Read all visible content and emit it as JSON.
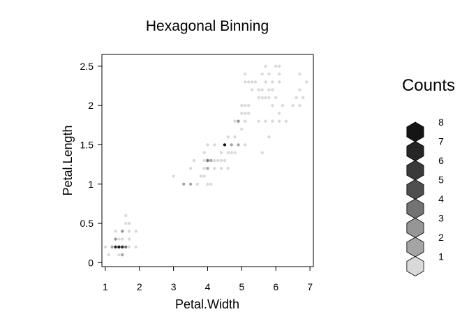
{
  "chart_data": {
    "type": "hexbin",
    "title": "Hexagonal Binning",
    "xlabel": "Petal.Width",
    "ylabel": "Petal.Length",
    "xlim": [
      0.9,
      7.1
    ],
    "ylim": [
      -0.05,
      2.65
    ],
    "xticks": [
      1,
      2,
      3,
      4,
      5,
      6,
      7
    ],
    "yticks": [
      0,
      0.5,
      1,
      1.5,
      2,
      2.5
    ],
    "ytick_labels": [
      "0",
      "0.5",
      "1",
      "1.5",
      "2",
      "2.5"
    ],
    "grid": false,
    "legend": {
      "title": "Counts",
      "position": "right",
      "levels": [
        {
          "count": 1,
          "color": "#d9d9d9"
        },
        {
          "count": 2,
          "color": "#a5a5a5"
        },
        {
          "count": 3,
          "color": "#969696"
        },
        {
          "count": 4,
          "color": "#737373"
        },
        {
          "count": 5,
          "color": "#4f4f4f"
        },
        {
          "count": 6,
          "color": "#3a3a3a"
        },
        {
          "count": 7,
          "color": "#262626"
        },
        {
          "count": 8,
          "color": "#151515"
        }
      ]
    },
    "bins": [
      {
        "x": 1.1,
        "y": 0.1,
        "count": 1
      },
      {
        "x": 1.4,
        "y": 0.1,
        "count": 1
      },
      {
        "x": 1.5,
        "y": 0.1,
        "count": 2
      },
      {
        "x": 1.0,
        "y": 0.2,
        "count": 1
      },
      {
        "x": 1.2,
        "y": 0.2,
        "count": 2
      },
      {
        "x": 1.3,
        "y": 0.2,
        "count": 7
      },
      {
        "x": 1.4,
        "y": 0.2,
        "count": 8
      },
      {
        "x": 1.5,
        "y": 0.2,
        "count": 7
      },
      {
        "x": 1.6,
        "y": 0.2,
        "count": 4
      },
      {
        "x": 1.7,
        "y": 0.2,
        "count": 1
      },
      {
        "x": 1.9,
        "y": 0.2,
        "count": 1
      },
      {
        "x": 1.3,
        "y": 0.3,
        "count": 3
      },
      {
        "x": 1.4,
        "y": 0.3,
        "count": 1
      },
      {
        "x": 1.5,
        "y": 0.3,
        "count": 1
      },
      {
        "x": 1.7,
        "y": 0.3,
        "count": 1
      },
      {
        "x": 1.3,
        "y": 0.4,
        "count": 1
      },
      {
        "x": 1.5,
        "y": 0.4,
        "count": 3
      },
      {
        "x": 1.7,
        "y": 0.4,
        "count": 1
      },
      {
        "x": 1.9,
        "y": 0.4,
        "count": 1
      },
      {
        "x": 1.6,
        "y": 0.5,
        "count": 1
      },
      {
        "x": 1.7,
        "y": 0.5,
        "count": 1
      },
      {
        "x": 1.6,
        "y": 0.6,
        "count": 1
      },
      {
        "x": 3.0,
        "y": 1.1,
        "count": 1
      },
      {
        "x": 3.3,
        "y": 1.0,
        "count": 2
      },
      {
        "x": 3.5,
        "y": 1.0,
        "count": 2
      },
      {
        "x": 3.7,
        "y": 1.0,
        "count": 1
      },
      {
        "x": 3.8,
        "y": 1.1,
        "count": 1
      },
      {
        "x": 3.9,
        "y": 1.1,
        "count": 1
      },
      {
        "x": 4.0,
        "y": 1.0,
        "count": 1
      },
      {
        "x": 4.1,
        "y": 1.0,
        "count": 1
      },
      {
        "x": 3.5,
        "y": 1.2,
        "count": 1
      },
      {
        "x": 3.9,
        "y": 1.2,
        "count": 1
      },
      {
        "x": 4.0,
        "y": 1.2,
        "count": 2
      },
      {
        "x": 4.2,
        "y": 1.2,
        "count": 1
      },
      {
        "x": 4.4,
        "y": 1.2,
        "count": 1
      },
      {
        "x": 4.6,
        "y": 1.2,
        "count": 1
      },
      {
        "x": 3.6,
        "y": 1.3,
        "count": 1
      },
      {
        "x": 3.9,
        "y": 1.3,
        "count": 1
      },
      {
        "x": 4.0,
        "y": 1.3,
        "count": 4
      },
      {
        "x": 4.1,
        "y": 1.3,
        "count": 2
      },
      {
        "x": 4.2,
        "y": 1.3,
        "count": 1
      },
      {
        "x": 4.3,
        "y": 1.3,
        "count": 1
      },
      {
        "x": 4.4,
        "y": 1.3,
        "count": 1
      },
      {
        "x": 4.5,
        "y": 1.3,
        "count": 1
      },
      {
        "x": 4.7,
        "y": 1.4,
        "count": 1
      },
      {
        "x": 3.9,
        "y": 1.4,
        "count": 1
      },
      {
        "x": 4.4,
        "y": 1.4,
        "count": 1
      },
      {
        "x": 4.6,
        "y": 1.4,
        "count": 1
      },
      {
        "x": 4.7,
        "y": 1.5,
        "count": 2
      },
      {
        "x": 4.5,
        "y": 1.5,
        "count": 8
      },
      {
        "x": 4.9,
        "y": 1.5,
        "count": 2
      },
      {
        "x": 5.1,
        "y": 1.5,
        "count": 1
      },
      {
        "x": 4.0,
        "y": 1.5,
        "count": 1
      },
      {
        "x": 4.2,
        "y": 1.5,
        "count": 1
      },
      {
        "x": 4.6,
        "y": 1.6,
        "count": 1
      },
      {
        "x": 4.8,
        "y": 1.6,
        "count": 1
      },
      {
        "x": 5.0,
        "y": 1.7,
        "count": 1
      },
      {
        "x": 5.8,
        "y": 1.6,
        "count": 1
      },
      {
        "x": 4.8,
        "y": 1.8,
        "count": 1
      },
      {
        "x": 4.9,
        "y": 1.8,
        "count": 3
      },
      {
        "x": 5.1,
        "y": 1.8,
        "count": 1
      },
      {
        "x": 5.5,
        "y": 1.8,
        "count": 1
      },
      {
        "x": 5.7,
        "y": 1.8,
        "count": 1
      },
      {
        "x": 5.9,
        "y": 1.8,
        "count": 1
      },
      {
        "x": 6.1,
        "y": 1.8,
        "count": 1
      },
      {
        "x": 6.3,
        "y": 1.8,
        "count": 1
      },
      {
        "x": 4.8,
        "y": 1.4,
        "count": 1
      },
      {
        "x": 5.0,
        "y": 1.9,
        "count": 1
      },
      {
        "x": 5.1,
        "y": 1.9,
        "count": 1
      },
      {
        "x": 5.2,
        "y": 1.9,
        "count": 1
      },
      {
        "x": 5.6,
        "y": 1.4,
        "count": 1
      },
      {
        "x": 5.0,
        "y": 2.0,
        "count": 1
      },
      {
        "x": 5.1,
        "y": 2.0,
        "count": 1
      },
      {
        "x": 5.2,
        "y": 2.0,
        "count": 1
      },
      {
        "x": 5.9,
        "y": 2.0,
        "count": 1
      },
      {
        "x": 6.2,
        "y": 2.0,
        "count": 1
      },
      {
        "x": 6.5,
        "y": 2.0,
        "count": 1
      },
      {
        "x": 6.7,
        "y": 2.0,
        "count": 1
      },
      {
        "x": 6.1,
        "y": 1.9,
        "count": 1
      },
      {
        "x": 5.5,
        "y": 2.1,
        "count": 1
      },
      {
        "x": 5.6,
        "y": 2.1,
        "count": 1
      },
      {
        "x": 5.7,
        "y": 2.1,
        "count": 1
      },
      {
        "x": 6.0,
        "y": 2.1,
        "count": 1
      },
      {
        "x": 6.6,
        "y": 2.1,
        "count": 1
      },
      {
        "x": 6.8,
        "y": 2.1,
        "count": 1
      },
      {
        "x": 5.3,
        "y": 2.2,
        "count": 1
      },
      {
        "x": 5.6,
        "y": 2.2,
        "count": 1
      },
      {
        "x": 5.9,
        "y": 2.2,
        "count": 1
      },
      {
        "x": 5.1,
        "y": 2.3,
        "count": 1
      },
      {
        "x": 5.2,
        "y": 2.3,
        "count": 1
      },
      {
        "x": 5.3,
        "y": 2.3,
        "count": 1
      },
      {
        "x": 5.4,
        "y": 2.3,
        "count": 1
      },
      {
        "x": 5.7,
        "y": 2.3,
        "count": 1
      },
      {
        "x": 5.9,
        "y": 2.3,
        "count": 1
      },
      {
        "x": 6.1,
        "y": 2.3,
        "count": 1
      },
      {
        "x": 6.9,
        "y": 2.3,
        "count": 1
      },
      {
        "x": 5.5,
        "y": 2.2,
        "count": 1
      },
      {
        "x": 6.7,
        "y": 2.2,
        "count": 1
      },
      {
        "x": 5.6,
        "y": 2.4,
        "count": 1
      },
      {
        "x": 5.8,
        "y": 2.4,
        "count": 1
      },
      {
        "x": 6.1,
        "y": 2.4,
        "count": 1
      },
      {
        "x": 5.7,
        "y": 2.5,
        "count": 1
      },
      {
        "x": 6.0,
        "y": 2.5,
        "count": 1
      },
      {
        "x": 6.1,
        "y": 2.5,
        "count": 1
      },
      {
        "x": 5.1,
        "y": 2.4,
        "count": 1
      },
      {
        "x": 6.7,
        "y": 2.4,
        "count": 1
      },
      {
        "x": 5.8,
        "y": 2.2,
        "count": 1
      },
      {
        "x": 5.8,
        "y": 2.1,
        "count": 1
      }
    ]
  }
}
